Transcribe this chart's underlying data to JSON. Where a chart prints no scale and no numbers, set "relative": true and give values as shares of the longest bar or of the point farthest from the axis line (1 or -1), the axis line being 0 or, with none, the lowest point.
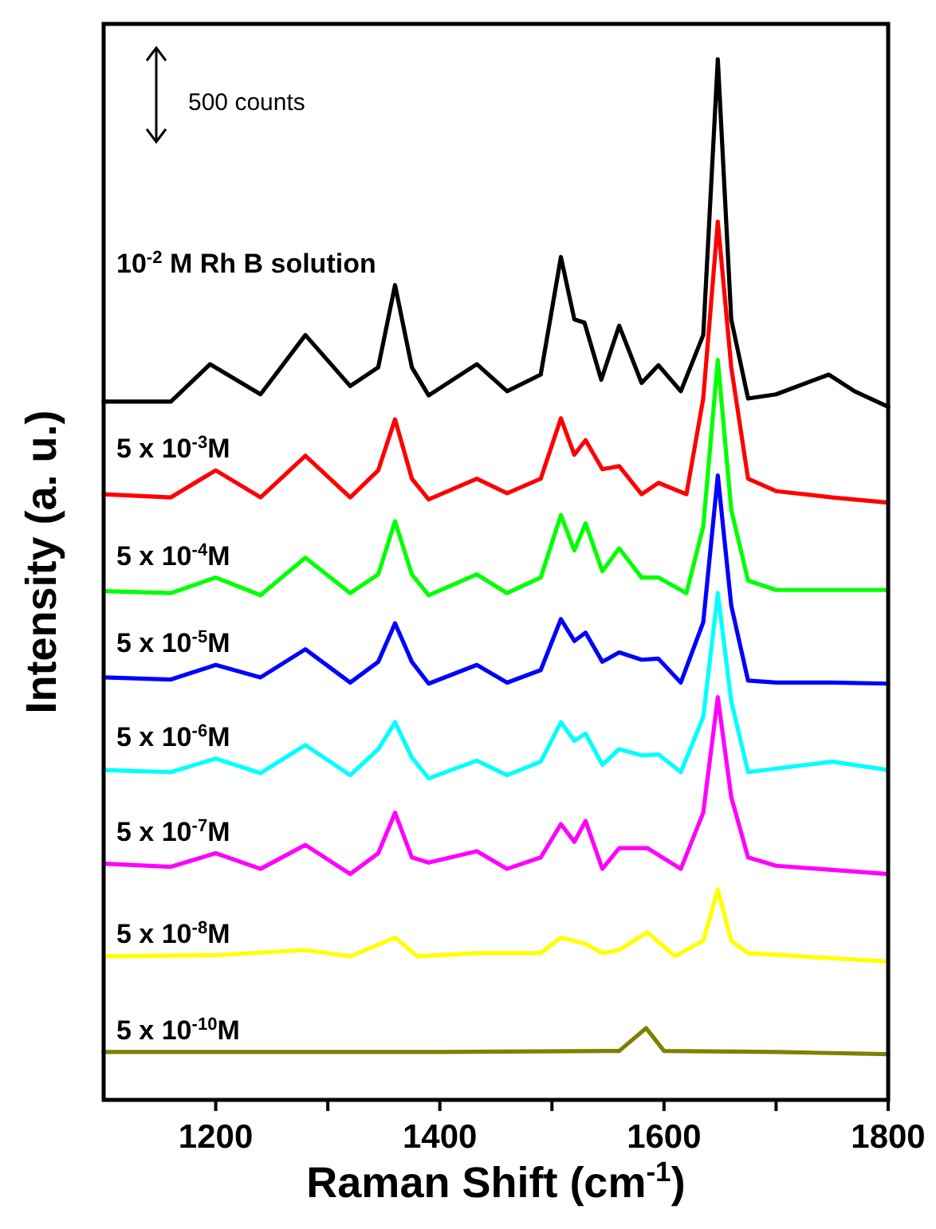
{
  "chart_data": {
    "type": "line",
    "relative": true,
    "xlabel": "Raman Shift (cm$^{-1}$)",
    "ylabel": "Intensity (a. u.)",
    "xlim": [
      1100,
      1800
    ],
    "xticks": [
      1200,
      {
        "value": 1300,
        "label": null
      },
      1400,
      {
        "value": 1500,
        "label": null
      },
      1600,
      {
        "value": 1700,
        "label": null
      },
      1800
    ],
    "tick_labels": "x",
    "grid": false,
    "marker": "none",
    "line_style": "solid",
    "annotations": [
      "500 counts"
    ],
    "series": [
      {
        "name": "10$^{-2}$ M Rh B solution",
        "color": "#000000",
        "x": [
          1100,
          1160,
          1195,
          1240,
          1280,
          1320,
          1345,
          1360,
          1375,
          1390,
          1433,
          1460,
          1490,
          1508,
          1520,
          1529,
          1544,
          1560,
          1580,
          1595,
          1615,
          1635,
          1648,
          1660,
          1675,
          1700,
          1747,
          1770,
          1800
        ],
        "values": [
          0.671,
          0.671,
          0.707,
          0.678,
          0.735,
          0.686,
          0.704,
          0.783,
          0.704,
          0.677,
          0.707,
          0.681,
          0.697,
          0.81,
          0.75,
          0.747,
          0.692,
          0.744,
          0.689,
          0.706,
          0.681,
          0.735,
          1,
          0.75,
          0.674,
          0.678,
          0.697,
          0.681,
          0.666
        ]
      },
      {
        "name": "5 x 10$^{-3}$M",
        "color": "#ff0000",
        "x": [
          1100,
          1160,
          1200,
          1240,
          1280,
          1320,
          1345,
          1360,
          1375,
          1390,
          1433,
          1460,
          1490,
          1508,
          1520,
          1530,
          1545,
          1560,
          1580,
          1595,
          1620,
          1635,
          1648,
          1660,
          1675,
          1700,
          1750,
          1800
        ],
        "values": [
          0.582,
          0.579,
          0.605,
          0.579,
          0.619,
          0.579,
          0.605,
          0.654,
          0.597,
          0.577,
          0.597,
          0.583,
          0.597,
          0.655,
          0.62,
          0.634,
          0.606,
          0.609,
          0.582,
          0.593,
          0.582,
          0.674,
          0.844,
          0.704,
          0.597,
          0.585,
          0.579,
          0.574
        ]
      },
      {
        "name": "5 x 10$^{-4}$M",
        "color": "#00ff00",
        "x": [
          1100,
          1160,
          1200,
          1240,
          1280,
          1320,
          1345,
          1360,
          1375,
          1390,
          1433,
          1460,
          1490,
          1508,
          1520,
          1530,
          1545,
          1560,
          1580,
          1595,
          1620,
          1635,
          1648,
          1660,
          1675,
          1700,
          1750,
          1800
        ],
        "values": [
          0.489,
          0.487,
          0.502,
          0.485,
          0.521,
          0.487,
          0.505,
          0.556,
          0.505,
          0.485,
          0.505,
          0.487,
          0.502,
          0.562,
          0.528,
          0.554,
          0.508,
          0.53,
          0.502,
          0.502,
          0.487,
          0.551,
          0.711,
          0.567,
          0.499,
          0.49,
          0.49,
          0.49
        ]
      },
      {
        "name": "5 x 10$^{-5}$M",
        "color": "#0000ff",
        "x": [
          1100,
          1160,
          1200,
          1240,
          1280,
          1320,
          1345,
          1360,
          1375,
          1390,
          1433,
          1460,
          1490,
          1508,
          1520,
          1530,
          1545,
          1560,
          1580,
          1595,
          1615,
          1635,
          1648,
          1660,
          1675,
          1700,
          1750,
          1800
        ],
        "values": [
          0.406,
          0.404,
          0.418,
          0.406,
          0.433,
          0.401,
          0.421,
          0.458,
          0.421,
          0.4,
          0.418,
          0.401,
          0.413,
          0.462,
          0.441,
          0.449,
          0.421,
          0.43,
          0.423,
          0.424,
          0.401,
          0.459,
          0.6,
          0.475,
          0.403,
          0.401,
          0.401,
          0.4
        ]
      },
      {
        "name": "5 x 10$^{-6}$M",
        "color": "#00ffff",
        "x": [
          1100,
          1160,
          1200,
          1240,
          1280,
          1320,
          1345,
          1360,
          1375,
          1390,
          1433,
          1460,
          1490,
          1508,
          1520,
          1530,
          1545,
          1560,
          1580,
          1595,
          1615,
          1635,
          1648,
          1660,
          1675,
          1750,
          1800
        ],
        "values": [
          0.317,
          0.315,
          0.328,
          0.314,
          0.341,
          0.312,
          0.337,
          0.363,
          0.329,
          0.309,
          0.326,
          0.312,
          0.325,
          0.363,
          0.345,
          0.352,
          0.322,
          0.337,
          0.331,
          0.332,
          0.315,
          0.368,
          0.487,
          0.383,
          0.315,
          0.325,
          0.317
        ]
      },
      {
        "name": "5 x 10$^{-7}$M",
        "color": "#ff00ff",
        "x": [
          1100,
          1160,
          1200,
          1240,
          1280,
          1320,
          1345,
          1360,
          1375,
          1390,
          1433,
          1460,
          1490,
          1508,
          1520,
          1530,
          1545,
          1560,
          1585,
          1615,
          1635,
          1648,
          1660,
          1675,
          1700,
          1800
        ],
        "values": [
          0.227,
          0.224,
          0.237,
          0.222,
          0.245,
          0.217,
          0.237,
          0.276,
          0.233,
          0.228,
          0.239,
          0.222,
          0.233,
          0.265,
          0.248,
          0.268,
          0.222,
          0.242,
          0.242,
          0.222,
          0.276,
          0.387,
          0.291,
          0.233,
          0.225,
          0.217
        ]
      },
      {
        "name": "5 x 10$^{-8}$M",
        "color": "#ffff00",
        "x": [
          1100,
          1200,
          1280,
          1320,
          1360,
          1380,
          1433,
          1490,
          1508,
          1530,
          1545,
          1560,
          1585,
          1610,
          1635,
          1648,
          1660,
          1675,
          1800
        ],
        "values": [
          0.138,
          0.139,
          0.144,
          0.138,
          0.156,
          0.138,
          0.141,
          0.141,
          0.156,
          0.15,
          0.141,
          0.144,
          0.161,
          0.138,
          0.153,
          0.202,
          0.153,
          0.141,
          0.133
        ]
      },
      {
        "name": "5 x 10$^{-10}$M",
        "color": "#808000",
        "x": [
          1100,
          1400,
          1560,
          1584,
          1600,
          1700,
          1800
        ],
        "values": [
          0.046,
          0.046,
          0.047,
          0.069,
          0.047,
          0.046,
          0.044
        ]
      }
    ]
  }
}
